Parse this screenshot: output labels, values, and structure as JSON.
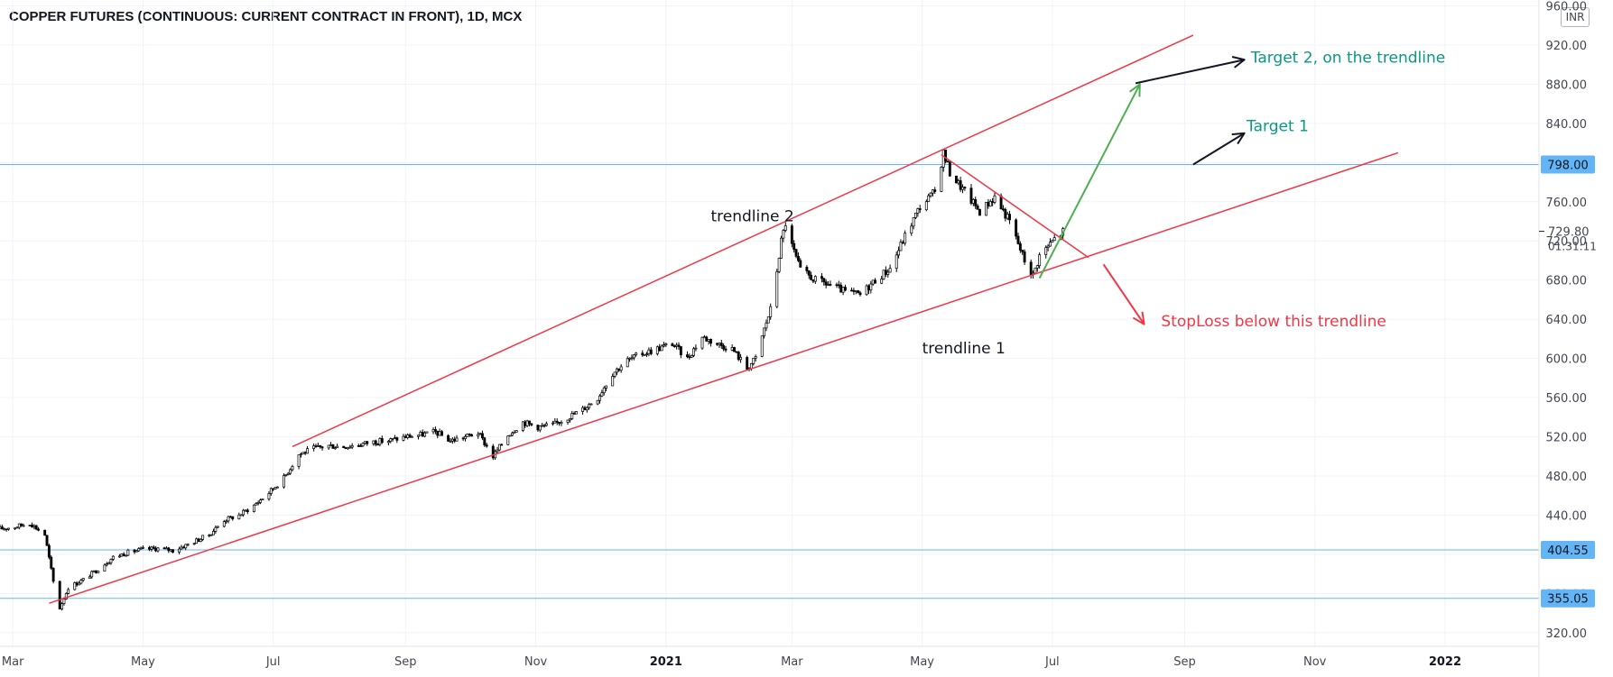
{
  "chart_data": {
    "type": "candlestick",
    "title": "COPPER FUTURES (CONTINUOUS: CURRENT CONTRACT IN FRONT), 1D, MCX",
    "currency": "INR",
    "x_axis": {
      "ticks": [
        {
          "label": "Mar",
          "date": "2020-03-01"
        },
        {
          "label": "May",
          "date": "2020-05-01"
        },
        {
          "label": "Jul",
          "date": "2020-07-01"
        },
        {
          "label": "Sep",
          "date": "2020-09-01"
        },
        {
          "label": "Nov",
          "date": "2020-11-01"
        },
        {
          "label": "2021",
          "date": "2021-01-01",
          "bold": true
        },
        {
          "label": "Mar",
          "date": "2021-03-01"
        },
        {
          "label": "May",
          "date": "2021-05-01"
        },
        {
          "label": "Jul",
          "date": "2021-07-01"
        },
        {
          "label": "Sep",
          "date": "2021-09-01"
        },
        {
          "label": "Nov",
          "date": "2021-11-01"
        },
        {
          "label": "2022",
          "date": "2022-01-01",
          "bold": true
        }
      ],
      "range": [
        "2020-02-24",
        "2022-02-14"
      ]
    },
    "y_axis": {
      "ticks": [
        "320.00",
        "360.00",
        "400.00",
        "440.00",
        "480.00",
        "520.00",
        "560.00",
        "600.00",
        "640.00",
        "680.00",
        "720.00",
        "760.00",
        "800.00",
        "840.00",
        "880.00",
        "920.00",
        "960.00"
      ],
      "range": [
        306,
        966
      ]
    },
    "current_price": {
      "value": "729.80",
      "countdown": "01:31:11"
    },
    "horizontal_lines": [
      {
        "value": 798.0,
        "label": "798.00"
      },
      {
        "value": 404.55,
        "label": "404.55"
      },
      {
        "value": 355.05,
        "label": "355.05"
      }
    ],
    "price_path": [
      {
        "date": "2020-02-24",
        "price": 426
      },
      {
        "date": "2020-03-02",
        "price": 428
      },
      {
        "date": "2020-03-09",
        "price": 432
      },
      {
        "date": "2020-03-16",
        "price": 420
      },
      {
        "date": "2020-03-20",
        "price": 372
      },
      {
        "date": "2020-03-23",
        "price": 345
      },
      {
        "date": "2020-03-27",
        "price": 366
      },
      {
        "date": "2020-04-03",
        "price": 374
      },
      {
        "date": "2020-04-10",
        "price": 385
      },
      {
        "date": "2020-04-17",
        "price": 397
      },
      {
        "date": "2020-04-24",
        "price": 402
      },
      {
        "date": "2020-05-01",
        "price": 405
      },
      {
        "date": "2020-05-08",
        "price": 406
      },
      {
        "date": "2020-05-15",
        "price": 404
      },
      {
        "date": "2020-05-22",
        "price": 410
      },
      {
        "date": "2020-06-01",
        "price": 420
      },
      {
        "date": "2020-06-08",
        "price": 435
      },
      {
        "date": "2020-06-15",
        "price": 440
      },
      {
        "date": "2020-06-22",
        "price": 450
      },
      {
        "date": "2020-06-29",
        "price": 463
      },
      {
        "date": "2020-07-06",
        "price": 478
      },
      {
        "date": "2020-07-13",
        "price": 502
      },
      {
        "date": "2020-07-20",
        "price": 508
      },
      {
        "date": "2020-07-27",
        "price": 511
      },
      {
        "date": "2020-08-03",
        "price": 510
      },
      {
        "date": "2020-08-10",
        "price": 512
      },
      {
        "date": "2020-08-17",
        "price": 515
      },
      {
        "date": "2020-08-24",
        "price": 516
      },
      {
        "date": "2020-09-01",
        "price": 520
      },
      {
        "date": "2020-09-08",
        "price": 522
      },
      {
        "date": "2020-09-15",
        "price": 525
      },
      {
        "date": "2020-09-22",
        "price": 516
      },
      {
        "date": "2020-09-29",
        "price": 520
      },
      {
        "date": "2020-10-05",
        "price": 524
      },
      {
        "date": "2020-10-12",
        "price": 500
      },
      {
        "date": "2020-10-19",
        "price": 522
      },
      {
        "date": "2020-10-26",
        "price": 535
      },
      {
        "date": "2020-11-02",
        "price": 530
      },
      {
        "date": "2020-11-09",
        "price": 532
      },
      {
        "date": "2020-11-16",
        "price": 540
      },
      {
        "date": "2020-11-23",
        "price": 548
      },
      {
        "date": "2020-11-30",
        "price": 560
      },
      {
        "date": "2020-12-07",
        "price": 585
      },
      {
        "date": "2020-12-14",
        "price": 598
      },
      {
        "date": "2020-12-21",
        "price": 605
      },
      {
        "date": "2020-12-28",
        "price": 610
      },
      {
        "date": "2021-01-04",
        "price": 615
      },
      {
        "date": "2021-01-11",
        "price": 600
      },
      {
        "date": "2021-01-18",
        "price": 622
      },
      {
        "date": "2021-01-25",
        "price": 615
      },
      {
        "date": "2021-02-01",
        "price": 610
      },
      {
        "date": "2021-02-08",
        "price": 590
      },
      {
        "date": "2021-02-12",
        "price": 600
      },
      {
        "date": "2021-02-16",
        "price": 630
      },
      {
        "date": "2021-02-19",
        "price": 650
      },
      {
        "date": "2021-02-22",
        "price": 690
      },
      {
        "date": "2021-02-24",
        "price": 720
      },
      {
        "date": "2021-02-26",
        "price": 738
      },
      {
        "date": "2021-03-01",
        "price": 715
      },
      {
        "date": "2021-03-05",
        "price": 690
      },
      {
        "date": "2021-03-12",
        "price": 680
      },
      {
        "date": "2021-03-19",
        "price": 675
      },
      {
        "date": "2021-03-26",
        "price": 668
      },
      {
        "date": "2021-04-02",
        "price": 665
      },
      {
        "date": "2021-04-09",
        "price": 680
      },
      {
        "date": "2021-04-16",
        "price": 692
      },
      {
        "date": "2021-04-23",
        "price": 725
      },
      {
        "date": "2021-04-30",
        "price": 755
      },
      {
        "date": "2021-05-07",
        "price": 770
      },
      {
        "date": "2021-05-11",
        "price": 810
      },
      {
        "date": "2021-05-14",
        "price": 790
      },
      {
        "date": "2021-05-21",
        "price": 770
      },
      {
        "date": "2021-05-28",
        "price": 750
      },
      {
        "date": "2021-06-04",
        "price": 765
      },
      {
        "date": "2021-06-11",
        "price": 740
      },
      {
        "date": "2021-06-18",
        "price": 700
      },
      {
        "date": "2021-06-22",
        "price": 685
      },
      {
        "date": "2021-06-25",
        "price": 705
      },
      {
        "date": "2021-07-02",
        "price": 722
      },
      {
        "date": "2021-07-06",
        "price": 729.8
      }
    ],
    "trendlines": [
      {
        "name": "trendline 1",
        "color": "#f23645",
        "from": {
          "date": "2020-03-18",
          "price": 350
        },
        "to": {
          "date": "2021-12-10",
          "price": 810
        }
      },
      {
        "name": "trendline 2",
        "color": "#f23645",
        "from": {
          "date": "2020-07-10",
          "price": 510
        },
        "to": {
          "date": "2021-09-05",
          "price": 930
        }
      },
      {
        "name": "",
        "color": "#f23645",
        "from": {
          "date": "2021-05-10",
          "price": 808
        },
        "to": {
          "date": "2021-07-18",
          "price": 703
        }
      }
    ],
    "arrows": [
      {
        "color": "#4caf50",
        "from": {
          "date": "2021-06-25",
          "price": 682
        },
        "to": {
          "date": "2021-08-11",
          "price": 880
        }
      },
      {
        "color": "#131722",
        "from": {
          "date": "2021-08-09",
          "price": 881
        },
        "to": {
          "date": "2021-09-29",
          "price": 905
        }
      },
      {
        "color": "#131722",
        "from": {
          "date": "2021-09-05",
          "price": 798
        },
        "to": {
          "date": "2021-09-29",
          "price": 830
        }
      },
      {
        "color": "#f23645",
        "from": {
          "date": "2021-07-25",
          "price": 696
        },
        "to": {
          "date": "2021-08-13",
          "price": 635
        }
      }
    ],
    "annotations": [
      {
        "text": "trendline 2",
        "date": "2021-01-22",
        "price": 740,
        "color": "#131722"
      },
      {
        "text": "trendline 1",
        "date": "2021-05-01",
        "price": 605,
        "color": "#131722"
      },
      {
        "text": "Target 2, on the trendline",
        "date": "2021-10-02",
        "price": 902,
        "color": "#089981"
      },
      {
        "text": "Target 1",
        "date": "2021-09-30",
        "price": 832,
        "color": "#089981"
      },
      {
        "text": "StopLoss below this trendline",
        "date": "2021-08-21",
        "price": 633,
        "color": "#f23645"
      }
    ]
  }
}
